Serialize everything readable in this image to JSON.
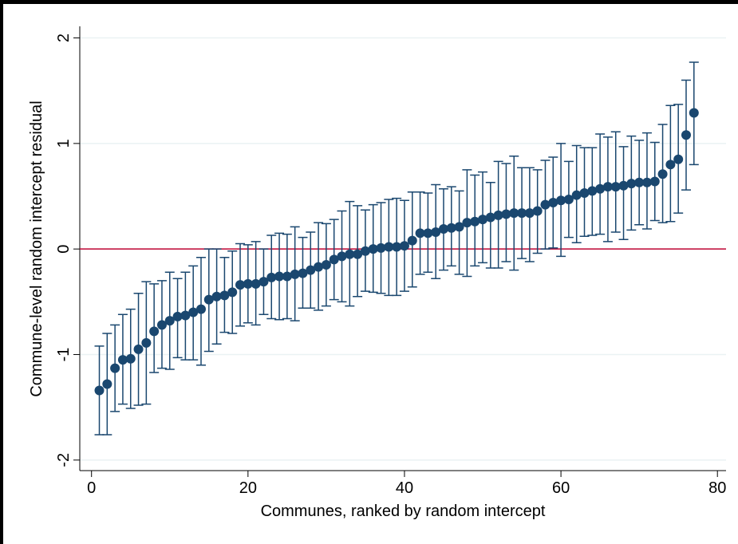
{
  "chart_data": {
    "type": "caterpillar",
    "xlabel": "Communes, ranked by random intercept",
    "ylabel": "Commune-level random intercept residual",
    "xlim": [
      -1.5,
      81.1
    ],
    "ylim": [
      -2.1,
      2.11
    ],
    "xticks": [
      0,
      20,
      40,
      60,
      80
    ],
    "yticks": [
      -2,
      -1,
      0,
      1,
      2
    ],
    "grid": true,
    "yline": 0,
    "yline_color": "#c10534",
    "series": [
      {
        "color": "#1a476f",
        "x": [
          1,
          2,
          3,
          4,
          5,
          6,
          7,
          8,
          9,
          10,
          11,
          12,
          13,
          14,
          15,
          16,
          17,
          18,
          19,
          20,
          21,
          22,
          23,
          24,
          25,
          26,
          27,
          28,
          29,
          30,
          31,
          32,
          33,
          34,
          35,
          36,
          37,
          38,
          39,
          40,
          41,
          42,
          43,
          44,
          45,
          46,
          47,
          48,
          49,
          50,
          51,
          52,
          53,
          54,
          55,
          56,
          57,
          58,
          59,
          60,
          61,
          62,
          63,
          64,
          65,
          66,
          67,
          68,
          69,
          70,
          71,
          72,
          73,
          74,
          75,
          76,
          77
        ],
        "values": [
          -1.34,
          -1.28,
          -1.13,
          -1.05,
          -1.04,
          -0.95,
          -0.89,
          -0.78,
          -0.72,
          -0.68,
          -0.64,
          -0.63,
          -0.6,
          -0.57,
          -0.48,
          -0.45,
          -0.44,
          -0.41,
          -0.34,
          -0.33,
          -0.33,
          -0.31,
          -0.27,
          -0.26,
          -0.26,
          -0.24,
          -0.23,
          -0.2,
          -0.17,
          -0.15,
          -0.1,
          -0.07,
          -0.05,
          -0.05,
          -0.02,
          0.0,
          0.01,
          0.02,
          0.02,
          0.03,
          0.08,
          0.15,
          0.15,
          0.16,
          0.19,
          0.2,
          0.21,
          0.25,
          0.26,
          0.28,
          0.3,
          0.32,
          0.33,
          0.34,
          0.34,
          0.34,
          0.36,
          0.42,
          0.44,
          0.46,
          0.47,
          0.51,
          0.53,
          0.55,
          0.57,
          0.59,
          0.59,
          0.6,
          0.62,
          0.63,
          0.63,
          0.64,
          0.71,
          0.8,
          0.85,
          1.08,
          1.29
        ],
        "lower": [
          -1.76,
          -1.76,
          -1.54,
          -1.47,
          -1.51,
          -1.48,
          -1.47,
          -1.17,
          -1.13,
          -1.14,
          -1.03,
          -1.05,
          -1.05,
          -1.1,
          -0.97,
          -0.9,
          -0.79,
          -0.8,
          -0.73,
          -0.7,
          -0.72,
          -0.62,
          -0.66,
          -0.67,
          -0.66,
          -0.68,
          -0.56,
          -0.56,
          -0.58,
          -0.54,
          -0.48,
          -0.5,
          -0.54,
          -0.45,
          -0.4,
          -0.41,
          -0.42,
          -0.44,
          -0.44,
          -0.4,
          -0.36,
          -0.24,
          -0.22,
          -0.28,
          -0.2,
          -0.16,
          -0.24,
          -0.26,
          -0.16,
          -0.13,
          -0.18,
          -0.18,
          -0.12,
          -0.2,
          -0.09,
          -0.12,
          -0.04,
          0.0,
          0.01,
          -0.07,
          0.11,
          0.06,
          0.12,
          0.13,
          0.14,
          0.07,
          0.16,
          0.09,
          0.18,
          0.23,
          0.19,
          0.27,
          0.25,
          0.26,
          0.34,
          0.56,
          0.8
        ],
        "upper": [
          -0.92,
          -0.8,
          -0.72,
          -0.62,
          -0.57,
          -0.42,
          -0.31,
          -0.33,
          -0.3,
          -0.22,
          -0.28,
          -0.22,
          -0.16,
          -0.08,
          0.0,
          0.0,
          -0.08,
          -0.02,
          0.05,
          0.04,
          0.07,
          0.0,
          0.13,
          0.15,
          0.14,
          0.21,
          0.11,
          0.16,
          0.25,
          0.24,
          0.28,
          0.36,
          0.45,
          0.41,
          0.37,
          0.42,
          0.44,
          0.47,
          0.48,
          0.46,
          0.54,
          0.54,
          0.53,
          0.61,
          0.57,
          0.59,
          0.55,
          0.75,
          0.7,
          0.73,
          0.63,
          0.83,
          0.81,
          0.88,
          0.77,
          0.77,
          0.75,
          0.84,
          0.87,
          1.0,
          0.83,
          0.98,
          0.96,
          0.96,
          1.09,
          1.06,
          1.11,
          0.97,
          1.07,
          1.03,
          1.1,
          1.01,
          1.18,
          1.36,
          1.37,
          1.6,
          1.77
        ]
      }
    ]
  }
}
